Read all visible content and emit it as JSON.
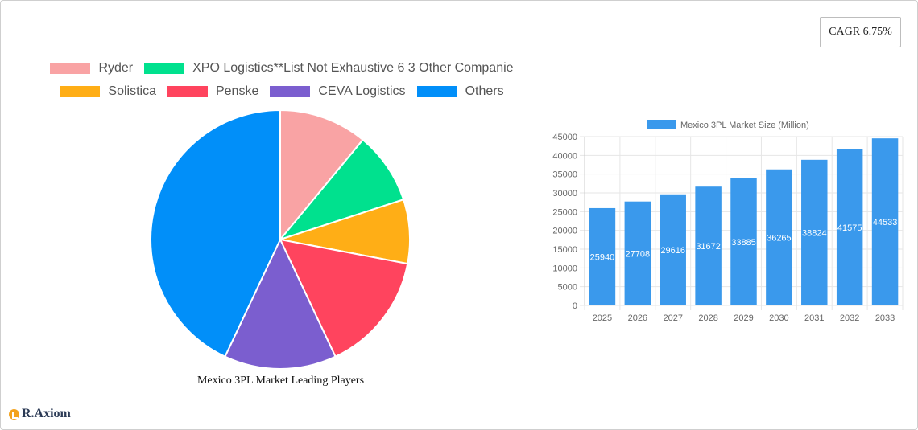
{
  "cagr": {
    "label": "CAGR 6.75%"
  },
  "brand": {
    "name": "R.Axiom",
    "icon": "chart-logo-icon"
  },
  "chart_data": [
    {
      "type": "pie",
      "title": "Mexico 3PL Market Leading Players",
      "legend_position": "top",
      "slices": [
        {
          "name": "Ryder",
          "value": 11,
          "color": "#f9a3a4"
        },
        {
          "name": "XPO Logistics**List Not Exhaustive 6 3 Other Companie",
          "value": 9,
          "color": "#00e18e"
        },
        {
          "name": "Solistica",
          "value": 8,
          "color": "#ffae16"
        },
        {
          "name": "Penske",
          "value": 15,
          "color": "#ff445e"
        },
        {
          "name": "CEVA Logistics",
          "value": 14,
          "color": "#7b5ecf"
        },
        {
          "name": "Others",
          "value": 43,
          "color": "#018ff9"
        }
      ]
    },
    {
      "type": "bar",
      "legend_label": "Mexico 3PL Market Size (Million)",
      "legend_position": "top",
      "color": "#3a99ec",
      "categories": [
        "2025",
        "2026",
        "2027",
        "2028",
        "2029",
        "2030",
        "2031",
        "2032",
        "2033"
      ],
      "values": [
        25940,
        27708,
        29616,
        31672,
        33885,
        36265,
        38824,
        41575,
        44533
      ],
      "ylim": [
        0,
        45000
      ],
      "yticks": [
        0,
        5000,
        10000,
        15000,
        20000,
        25000,
        30000,
        35000,
        40000,
        45000
      ],
      "grid": true
    }
  ]
}
